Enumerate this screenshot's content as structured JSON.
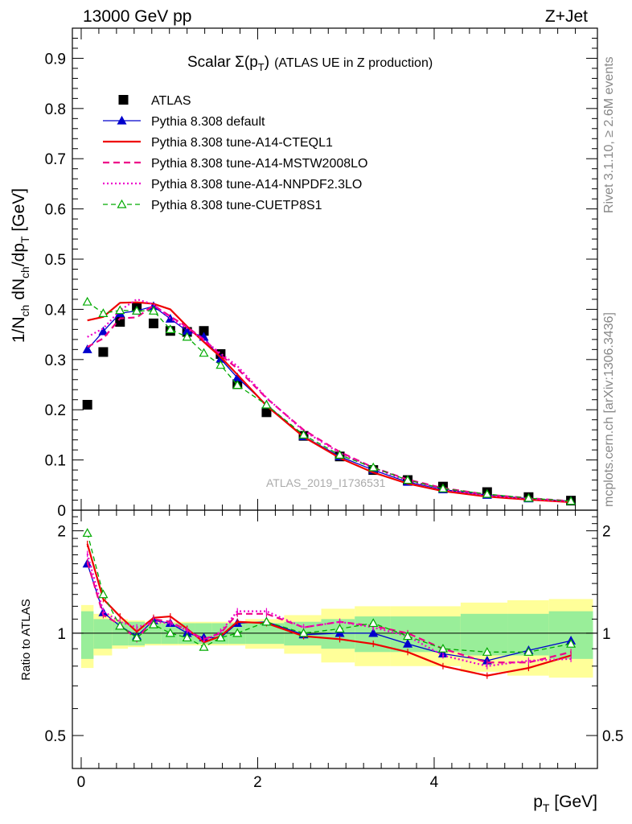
{
  "header": {
    "left": "13000 GeV pp",
    "right": "Z+Jet"
  },
  "side_labels": {
    "rivet": "Rivet 3.1.10, ≥ 2.6M events",
    "mcplots": "mcplots.cern.ch [arXiv:1306.3436]"
  },
  "chart_data": {
    "type": "line",
    "title_main": "Scalar Σ(p",
    "title_sub": "T",
    "title_close": ")",
    "title_extra": "(ATLAS UE in Z production)",
    "watermark": "ATLAS_2019_I1736531",
    "xlabel": "p",
    "xlabel_sub": "T",
    "xlabel_unit": "[GeV]",
    "ylabel": "1/N dN /dp [GeV]",
    "ratio_ylabel": "Ratio to ATLAS",
    "xlim": [
      -0.1,
      5.85
    ],
    "ylim": [
      0,
      0.96
    ],
    "ratio_ylim": [
      0.4,
      2.3
    ],
    "x_ticks": [
      0,
      2,
      4
    ],
    "x_tick_labels": [
      "0",
      "2",
      "4"
    ],
    "y_ticks": [
      0,
      0.1,
      0.2,
      0.3,
      0.4,
      0.5,
      0.6,
      0.7,
      0.8,
      0.9
    ],
    "y_tick_labels": [
      "0",
      "0.1",
      "0.2",
      "0.3",
      "0.4",
      "0.5",
      "0.6",
      "0.7",
      "0.8",
      "0.9"
    ],
    "ratio_ticks": [
      0.5,
      1,
      2
    ],
    "ratio_tick_labels": [
      "0.5",
      "1",
      "2"
    ],
    "x": [
      0.07,
      0.25,
      0.44,
      0.63,
      0.82,
      1.01,
      1.2,
      1.39,
      1.58,
      1.77,
      2.1,
      2.52,
      2.93,
      3.31,
      3.7,
      4.1,
      4.6,
      5.07,
      5.55
    ],
    "x_edges": [
      0.0,
      0.14,
      0.35,
      0.53,
      0.72,
      0.91,
      1.1,
      1.29,
      1.48,
      1.67,
      1.86,
      2.3,
      2.72,
      3.1,
      3.5,
      3.9,
      4.3,
      4.83,
      5.3,
      5.8
    ],
    "band_inner": [
      0.16,
      0.1,
      0.08,
      0.08,
      0.07,
      0.07,
      0.07,
      0.07,
      0.07,
      0.07,
      0.07,
      0.08,
      0.1,
      0.12,
      0.12,
      0.12,
      0.14,
      0.14,
      0.16
    ],
    "band_outer": [
      0.21,
      0.14,
      0.1,
      0.09,
      0.08,
      0.08,
      0.08,
      0.08,
      0.08,
      0.08,
      0.1,
      0.13,
      0.18,
      0.2,
      0.2,
      0.2,
      0.23,
      0.25,
      0.26
    ],
    "series": [
      {
        "name": "ATLAS",
        "style": "data",
        "color": "#000000",
        "values": [
          0.21,
          0.315,
          0.375,
          0.405,
          0.372,
          0.357,
          0.355,
          0.357,
          0.311,
          0.251,
          0.195,
          0.148,
          0.107,
          0.08,
          0.06,
          0.047,
          0.036,
          0.026,
          0.019
        ],
        "ratio": [
          1,
          1,
          1,
          1,
          1,
          1,
          1,
          1,
          1,
          1,
          1,
          1,
          1,
          1,
          1,
          1,
          1,
          1,
          1
        ]
      },
      {
        "name": "Pythia 8.308 default",
        "style": "solid-triangle",
        "color": "#0000cc",
        "values": [
          0.32,
          0.356,
          0.392,
          0.397,
          0.406,
          0.381,
          0.357,
          0.345,
          0.301,
          0.264,
          0.21,
          0.147,
          0.107,
          0.08,
          0.056,
          0.041,
          0.03,
          0.023,
          0.018
        ],
        "ratio": [
          1.6,
          1.15,
          1.05,
          0.98,
          1.09,
          1.07,
          1.0,
          0.97,
          0.97,
          1.07,
          1.08,
          0.99,
          1.0,
          1.0,
          0.93,
          0.87,
          0.83,
          0.89,
          0.95
        ]
      },
      {
        "name": "Pythia 8.308 tune-A14-CTEQL1",
        "style": "solid",
        "color": "#ee0000",
        "values": [
          0.378,
          0.385,
          0.413,
          0.414,
          0.411,
          0.4,
          0.366,
          0.335,
          0.305,
          0.27,
          0.208,
          0.146,
          0.104,
          0.075,
          0.053,
          0.038,
          0.027,
          0.021,
          0.016
        ],
        "ratio": [
          1.83,
          1.26,
          1.12,
          1.01,
          1.11,
          1.12,
          1.03,
          0.94,
          0.98,
          1.08,
          1.07,
          0.98,
          0.96,
          0.93,
          0.88,
          0.8,
          0.75,
          0.79,
          0.86
        ]
      },
      {
        "name": "Pythia 8.308 tune-A14-MSTW2008LO",
        "style": "dashed",
        "color": "#ee0088",
        "values": [
          0.325,
          0.342,
          0.382,
          0.384,
          0.408,
          0.386,
          0.365,
          0.34,
          0.309,
          0.282,
          0.223,
          0.16,
          0.116,
          0.085,
          0.061,
          0.044,
          0.031,
          0.024,
          0.018
        ],
        "ratio": [
          1.62,
          1.13,
          1.06,
          0.96,
          1.1,
          1.08,
          1.02,
          0.96,
          1.0,
          1.14,
          1.14,
          1.04,
          1.08,
          1.05,
          1.0,
          0.9,
          0.82,
          0.82,
          0.88
        ]
      },
      {
        "name": "Pythia 8.308 tune-A14-NNPDF2.3LO",
        "style": "dotted",
        "color": "#ee00cc",
        "values": [
          0.345,
          0.362,
          0.398,
          0.42,
          0.41,
          0.382,
          0.362,
          0.339,
          0.312,
          0.287,
          0.224,
          0.158,
          0.114,
          0.084,
          0.059,
          0.042,
          0.029,
          0.023,
          0.017
        ],
        "ratio": [
          1.71,
          1.16,
          1.08,
          1.04,
          1.08,
          1.07,
          1.02,
          0.95,
          1.01,
          1.16,
          1.16,
          1.04,
          1.08,
          1.04,
          0.98,
          0.86,
          0.8,
          0.83,
          0.84
        ]
      },
      {
        "name": "Pythia 8.308 tune-CUETP8S1",
        "style": "dashed-triangle",
        "color": "#00aa00",
        "values": [
          0.415,
          0.392,
          0.398,
          0.397,
          0.397,
          0.36,
          0.345,
          0.313,
          0.289,
          0.249,
          0.21,
          0.15,
          0.11,
          0.085,
          0.06,
          0.043,
          0.032,
          0.024,
          0.018
        ],
        "ratio": [
          1.97,
          1.3,
          1.05,
          0.97,
          1.06,
          1.0,
          0.97,
          0.91,
          0.97,
          1.0,
          1.08,
          1.0,
          1.03,
          1.07,
          0.98,
          0.9,
          0.88,
          0.88,
          0.93
        ]
      }
    ]
  }
}
